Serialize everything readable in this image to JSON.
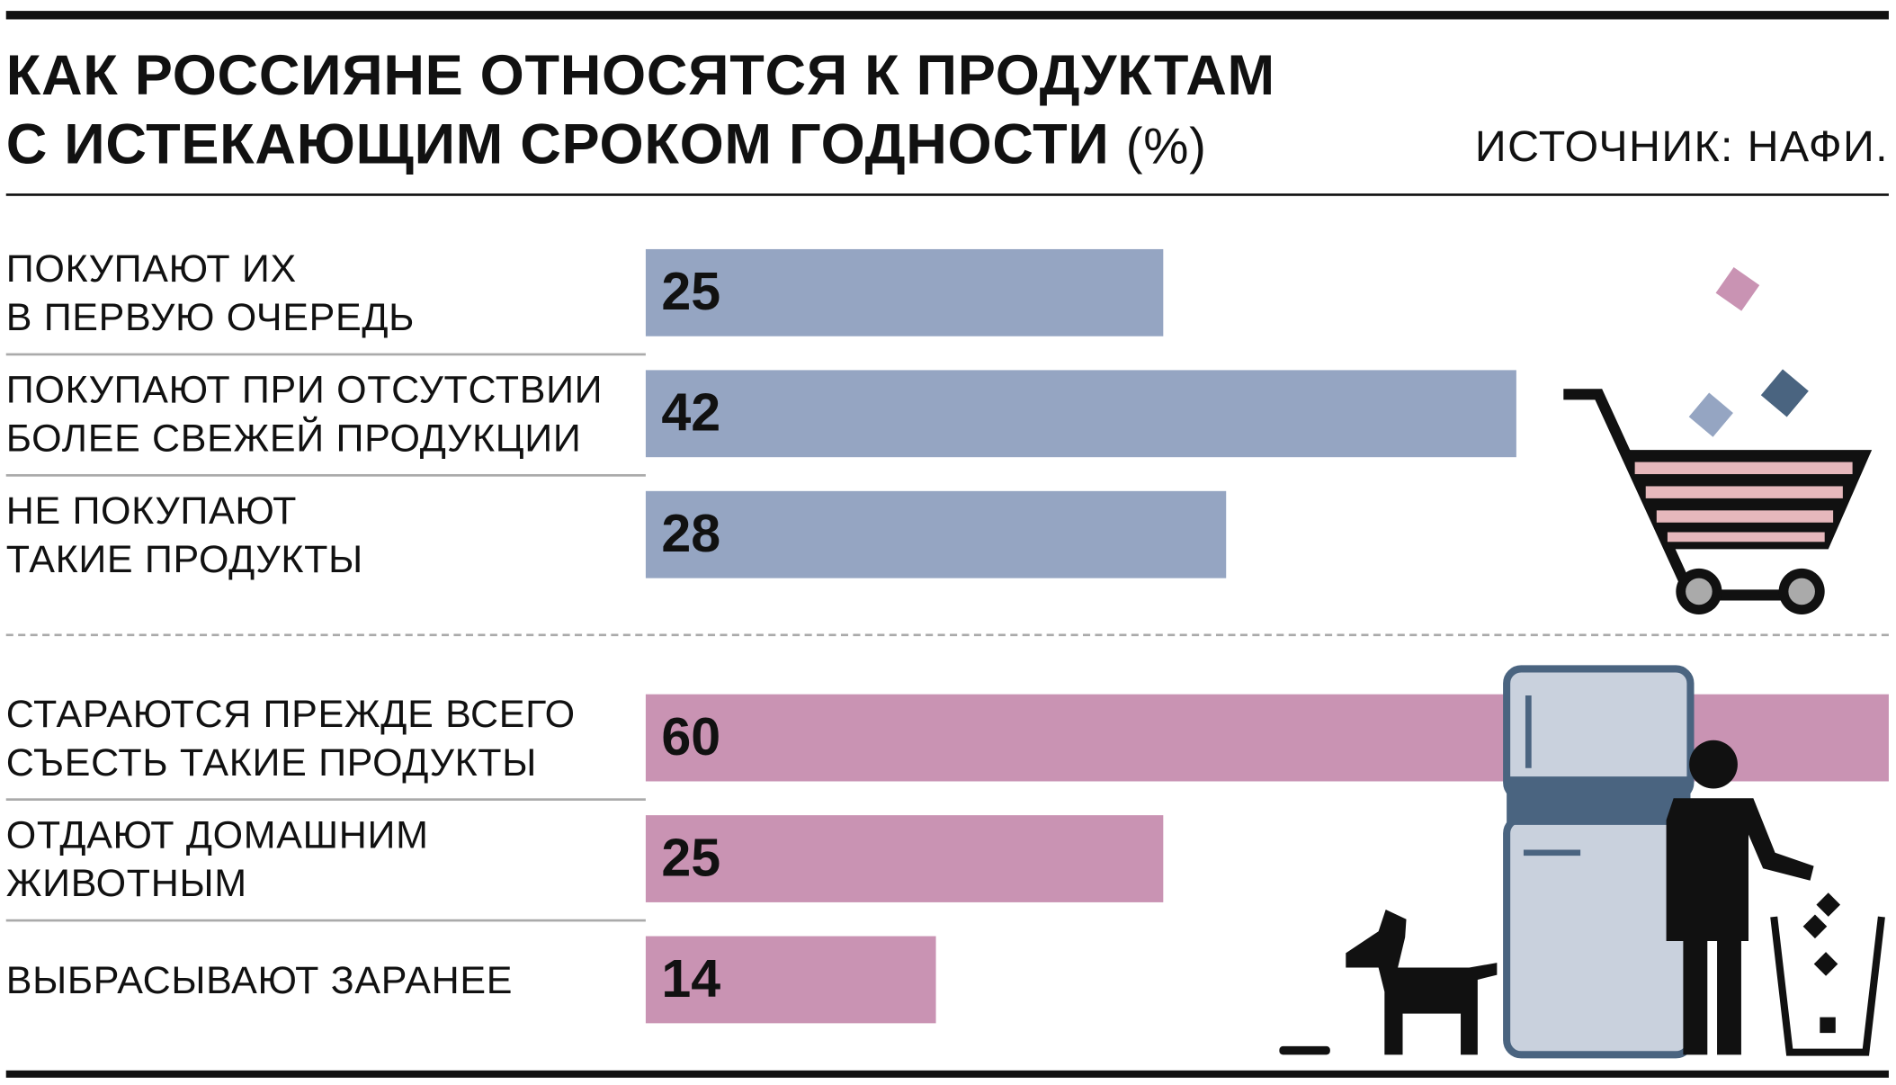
{
  "title": "КАК РОССИЯНЕ ОТНОСЯТСЯ К ПРОДУКТАМ\nС ИСТЕКАЮЩИМ СРОКОМ ГОДНОСТИ",
  "unit": "(%)",
  "source": "ИСТОЧНИК: НАФИ.",
  "chart_data": [
    {
      "type": "bar",
      "categories": [
        "ПОКУПАЮТ ИХ\nВ ПЕРВУЮ ОЧЕРЕДЬ",
        "ПОКУПАЮТ ПРИ ОТСУТСТВИИ\nБОЛЕЕ СВЕЖЕЙ ПРОДУКЦИИ",
        "НЕ ПОКУПАЮТ\nТАКИЕ ПРОДУКТЫ"
      ],
      "values": [
        25,
        42,
        28
      ],
      "color": "#95a5c2"
    },
    {
      "type": "bar",
      "categories": [
        "СТАРАЮТСЯ ПРЕЖДЕ ВСЕГО\nСЪЕСТЬ ТАКИЕ ПРОДУКТЫ",
        "ОТДАЮТ ДОМАШНИМ\nЖИВОТНЫМ",
        "ВЫБРАСЫВАЮТ ЗАРАНЕЕ"
      ],
      "values": [
        60,
        25,
        14
      ],
      "color": "#c993b3"
    }
  ]
}
